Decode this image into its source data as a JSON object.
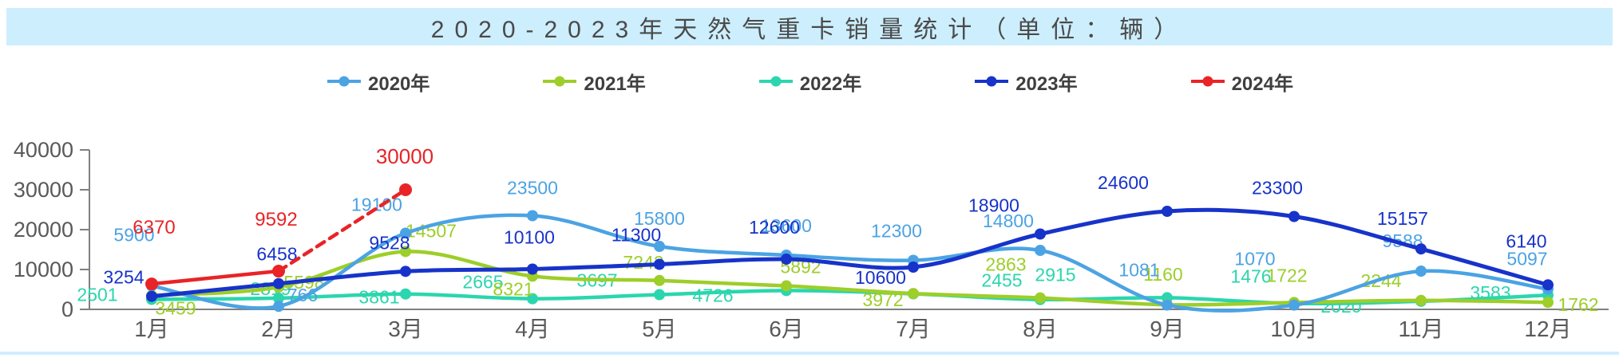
{
  "title": "2020-2023年天然气重卡销量统计（单位：辆）",
  "legend": {
    "items": [
      {
        "label": "2020年",
        "color": "#4BA3E3"
      },
      {
        "label": "2021年",
        "color": "#9DCE29"
      },
      {
        "label": "2022年",
        "color": "#2BD6AE"
      },
      {
        "label": "2023年",
        "color": "#1733C9"
      },
      {
        "label": "2024年",
        "color": "#E82427"
      }
    ]
  },
  "chart_data": {
    "type": "line",
    "title": "2020-2023年天然气重卡销量统计（单位：辆）",
    "categories": [
      "1月",
      "2月",
      "3月",
      "4月",
      "5月",
      "6月",
      "7月",
      "8月",
      "9月",
      "10月",
      "11月",
      "12月"
    ],
    "xlabel": "",
    "ylabel": "",
    "ylim": [
      0,
      40000
    ],
    "y_axis": {
      "min": 0,
      "max": 40000,
      "tick_step": 10000,
      "tick_labels": [
        "0",
        "10000",
        "20000",
        "30000",
        "40000"
      ]
    },
    "grid": false,
    "legend_position": "top",
    "series": [
      {
        "name": "2020年",
        "color": "#4BA3E3",
        "style": "solid",
        "smooth": true,
        "values": [
          5900,
          766,
          19100,
          23500,
          15800,
          13600,
          12300,
          14800,
          1081,
          1070,
          9588,
          5097
        ],
        "labels": [
          "5900",
          "766",
          "19100",
          "23500",
          "15800",
          "13600",
          "12300",
          "14800",
          "1081",
          "1070",
          "9588",
          "5097"
        ]
      },
      {
        "name": "2021年",
        "color": "#9DCE29",
        "style": "solid",
        "smooth": true,
        "values": [
          3459,
          5598,
          14507,
          8321,
          7242,
          5892,
          3972,
          2863,
          1160,
          1722,
          2244,
          1762
        ],
        "labels": [
          "3459",
          "5598",
          "14507",
          "8321",
          "7242",
          "5892",
          "3972",
          "2863",
          "1160",
          "1722",
          "2244",
          "1762"
        ]
      },
      {
        "name": "2022年",
        "color": "#2BD6AE",
        "style": "solid",
        "smooth": true,
        "values": [
          2501,
          2819,
          3861,
          2665,
          3697,
          4726,
          3900,
          2455,
          2915,
          1476,
          2020,
          3583
        ],
        "labels": [
          "2501",
          "2819",
          "3861",
          "2665",
          "3697",
          "4726",
          "",
          "2455",
          "2915",
          "1476",
          "2020",
          "3583"
        ],
        "note_unlabeled_point": "7月 value estimated from curve, no visible label"
      },
      {
        "name": "2023年",
        "color": "#1733C9",
        "style": "solid",
        "smooth": true,
        "values": [
          3254,
          6458,
          9528,
          10100,
          11300,
          12600,
          10600,
          18900,
          24600,
          23300,
          15157,
          6140
        ],
        "labels": [
          "3254",
          "6458",
          "9528",
          "10100",
          "11300",
          "12600",
          "10600",
          "18900",
          "24600",
          "23300",
          "15157",
          "6140"
        ]
      },
      {
        "name": "2024年",
        "color": "#E82427",
        "style": "dashed_after_feb",
        "smooth": false,
        "values": [
          6370,
          9592,
          30000
        ],
        "labels": [
          "6370",
          "9592",
          "30000"
        ]
      }
    ]
  }
}
